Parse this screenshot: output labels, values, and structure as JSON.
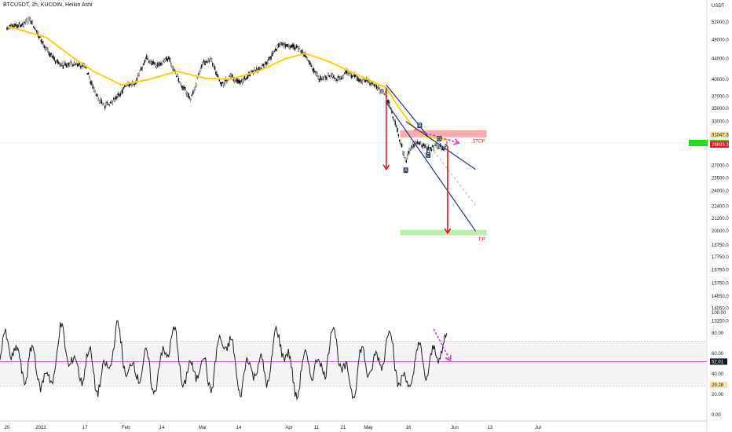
{
  "header": {
    "symbol_title": "BTCUSDT, 2h, KUCOIN, Heikin Ashi"
  },
  "chart_data": [
    {
      "type": "candlestick",
      "title": "BTCUSDT, 2h, KUCOIN, Heikin Ashi",
      "ylabel": "USDT",
      "yscale": "log",
      "ylim": [
        12000,
        58000
      ],
      "y_ticks": [
        "52000.0",
        "48000.0",
        "44000.0",
        "40000.0",
        "37000.0",
        "35000.0",
        "33000.0",
        "31047.3",
        "29693.3",
        "27000.0",
        "25500.0",
        "24000.0",
        "22400.0",
        "21200.0",
        "20000.0",
        "18750.0",
        "17750.0",
        "16750.0",
        "15750.0",
        "14850.0",
        "14050.0",
        "13250.0"
      ],
      "x_ticks": [
        "20",
        "2022",
        "17",
        "Feb",
        "14",
        "Mar",
        "14",
        "Apr",
        "11",
        "21",
        "May",
        "16",
        "Jun",
        "13",
        "Jul"
      ],
      "price_tags": {
        "stop": "31047.3",
        "current": "29693.3",
        "hidden": "··········"
      },
      "price_path": [
        [
          "2021-12-20",
          50500
        ],
        [
          "2021-12-25",
          51500
        ],
        [
          "2021-12-28",
          52500
        ],
        [
          "2022-01-01",
          48000
        ],
        [
          "2022-01-05",
          44500
        ],
        [
          "2022-01-08",
          42500
        ],
        [
          "2022-01-12",
          43000
        ],
        [
          "2022-01-17",
          42500
        ],
        [
          "2022-01-21",
          37000
        ],
        [
          "2022-01-24",
          35500
        ],
        [
          "2022-01-28",
          36500
        ],
        [
          "2022-01-31",
          38500
        ],
        [
          "2022-02-04",
          39500
        ],
        [
          "2022-02-08",
          44000
        ],
        [
          "2022-02-12",
          42500
        ],
        [
          "2022-02-16",
          44000
        ],
        [
          "2022-02-20",
          39500
        ],
        [
          "2022-02-24",
          36500
        ],
        [
          "2022-02-28",
          43000
        ],
        [
          "2022-03-03",
          44000
        ],
        [
          "2022-03-07",
          39000
        ],
        [
          "2022-03-10",
          40500
        ],
        [
          "2022-03-14",
          39500
        ],
        [
          "2022-03-17",
          41000
        ],
        [
          "2022-03-22",
          42500
        ],
        [
          "2022-03-28",
          47000
        ],
        [
          "2022-04-01",
          46500
        ],
        [
          "2022-04-04",
          46000
        ],
        [
          "2022-04-07",
          43500
        ],
        [
          "2022-04-11",
          40000
        ],
        [
          "2022-04-15",
          40800
        ],
        [
          "2022-04-18",
          40000
        ],
        [
          "2022-04-21",
          41500
        ],
        [
          "2022-04-25",
          40000
        ],
        [
          "2022-04-28",
          39700
        ],
        [
          "2022-05-02",
          38500
        ],
        [
          "2022-05-05",
          37000
        ],
        [
          "2022-05-07",
          34500
        ],
        [
          "2022-05-09",
          31500
        ],
        [
          "2022-05-12",
          27500
        ],
        [
          "2022-05-14",
          29500
        ],
        [
          "2022-05-17",
          30000
        ],
        [
          "2022-05-20",
          29000
        ],
        [
          "2022-05-23",
          29500
        ],
        [
          "2022-05-26",
          29200
        ],
        [
          "2022-05-27",
          29700
        ]
      ],
      "moving_average": {
        "color": "#f5d600",
        "path": [
          [
            "2021-12-20",
            51000
          ],
          [
            "2022-01-03",
            48500
          ],
          [
            "2022-01-12",
            44500
          ],
          [
            "2022-01-20",
            41500
          ],
          [
            "2022-01-30",
            39000
          ],
          [
            "2022-02-09",
            40000
          ],
          [
            "2022-02-19",
            41500
          ],
          [
            "2022-03-01",
            40200
          ],
          [
            "2022-03-10",
            40000
          ],
          [
            "2022-03-20",
            41500
          ],
          [
            "2022-03-30",
            44000
          ],
          [
            "2022-04-06",
            45000
          ],
          [
            "2022-04-14",
            43500
          ],
          [
            "2022-04-24",
            41000
          ],
          [
            "2022-05-05",
            38500
          ],
          [
            "2022-05-09",
            35500
          ],
          [
            "2022-05-14",
            32500
          ],
          [
            "2022-05-19",
            30800
          ],
          [
            "2022-05-24",
            30500
          ],
          [
            "2022-05-27",
            30300
          ]
        ]
      },
      "zones": [
        {
          "label": "STOP",
          "from": "2022-05-10",
          "to": "2022-06-10",
          "y_low": 30700,
          "y_high": 31700,
          "color": "#f7a1a4"
        },
        {
          "label": "T.P",
          "from": "2022-05-10",
          "to": "2022-06-10",
          "y_low": 19600,
          "y_high": 20100,
          "color": "#b4eca0"
        }
      ],
      "channel_lines": [
        {
          "from": [
            "2022-05-05",
            36000
          ],
          "to": [
            "2022-06-06",
            20000
          ],
          "color": "#1e3a7a"
        },
        {
          "from": [
            "2022-05-12",
            33000
          ],
          "to": [
            "2022-06-06",
            26500
          ],
          "color": "#1e3a7a"
        },
        {
          "from": [
            "2022-05-05",
            39000
          ],
          "to": [
            "2022-05-20",
            30800
          ],
          "color": "#1e3a7a"
        }
      ],
      "projection_line": {
        "from": [
          "2022-05-20",
          29800
        ],
        "to": [
          "2022-06-06",
          22500
        ],
        "color": "#9aa1ad"
      },
      "arrows": [
        {
          "from": [
            "2022-05-05",
            38500
          ],
          "to": [
            "2022-05-05",
            26500
          ],
          "color": "#e8141c"
        },
        {
          "from": [
            "2022-05-27",
            29500
          ],
          "to": [
            "2022-05-27",
            19800
          ],
          "color": "#e8141c"
        },
        {
          "from": [
            "2022-05-15",
            31800
          ],
          "to": [
            "2022-05-31",
            29900
          ],
          "color": "#e040c0"
        }
      ],
      "wave_labels": [
        {
          "text": "A",
          "at": [
            "2022-05-12",
            26400
          ]
        },
        {
          "text": "B",
          "at": [
            "2022-05-17",
            32400
          ]
        },
        {
          "text": "C",
          "at": [
            "2022-05-20",
            28300
          ]
        },
        {
          "text": "D",
          "at": [
            "2022-05-24",
            30500
          ]
        }
      ]
    },
    {
      "type": "line",
      "ylim": [
        0,
        100
      ],
      "y_ticks": [
        "100.00",
        "80.00",
        "60.00",
        "40.00",
        "20.00",
        "0.00"
      ],
      "bands": [
        72,
        28
      ],
      "reference_line": {
        "value": 52.01,
        "label": "52.01",
        "color": "#c026d3"
      },
      "last_value": {
        "value": 29.28,
        "label": "29.28"
      },
      "series_color": "#1c1f1c",
      "arrow": {
        "from": [
          "2022-05-22",
          84
        ],
        "to": [
          "2022-05-28",
          53
        ],
        "color": "#e040c0"
      }
    }
  ],
  "colors": {
    "axis_border": "#d1d4dc",
    "background": "#ffffff",
    "current_price_tag": "#22dd22"
  }
}
